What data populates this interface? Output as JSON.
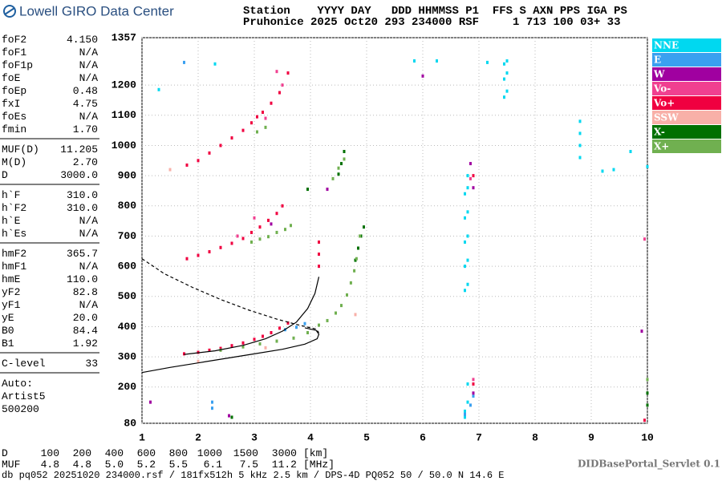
{
  "header": {
    "logo": "Lowell GIRO Data Center",
    "row1": "Station    YYYY DAY   DDD HHMMSS P1  FFS S AXN PPS IGA PS",
    "row2": "Pruhonice 2025 Oct20 293 234000 RSF     1 713 100 03+ 33"
  },
  "params": [
    [
      [
        "foF2",
        "4.150"
      ],
      [
        "foF1",
        "N/A"
      ],
      [
        "foF1p",
        "N/A"
      ],
      [
        "foE",
        "N/A"
      ],
      [
        "foEp",
        "0.48"
      ],
      [
        "fxI",
        "4.75"
      ],
      [
        "foEs",
        "N/A"
      ],
      [
        "fmin",
        "1.70"
      ]
    ],
    [
      [
        "MUF(D)",
        "11.205"
      ],
      [
        "M(D)",
        "2.70"
      ],
      [
        "D",
        "3000.0"
      ]
    ],
    [
      [
        "h`F",
        "310.0"
      ],
      [
        "h`F2",
        "310.0"
      ],
      [
        "h`E",
        "N/A"
      ],
      [
        "h`Es",
        "N/A"
      ]
    ],
    [
      [
        "hmF2",
        "365.7"
      ],
      [
        "hmF1",
        "N/A"
      ],
      [
        "hmE",
        "110.0"
      ],
      [
        "yF2",
        "82.8"
      ],
      [
        "yF1",
        "N/A"
      ],
      [
        "yE",
        "20.0"
      ],
      [
        "B0",
        "84.4"
      ],
      [
        "B1",
        "1.92"
      ]
    ],
    [
      [
        "C-level",
        "33"
      ]
    ]
  ],
  "auto": [
    "Auto:",
    "Artist5",
    "500200"
  ],
  "table": {
    "rows": [
      [
        "D",
        "100",
        "200",
        "400",
        "600",
        "800",
        "1000",
        "1500",
        "3000",
        "[km]"
      ],
      [
        "MUF",
        "4.8",
        "4.8",
        "5.0",
        "5.2",
        "5.5",
        "6.1",
        "7.5",
        "11.2",
        "[MHz]"
      ]
    ]
  },
  "footer": {
    "info": "db pq052 20251020 234000.rsf / 181fx512h 5 kHz 2.5 km / DPS-4D PQ052 50 / 50.0 N 14.6 E",
    "servlet": "DIDBasePortal_Servlet 0.1"
  },
  "chart_data": {
    "type": "scatter",
    "xlim": [
      1,
      10
    ],
    "ylim": [
      80,
      1357
    ],
    "xticks": [
      1,
      2,
      3,
      4,
      5,
      6,
      7,
      8,
      9,
      10
    ],
    "yticks": [
      80,
      200,
      300,
      400,
      500,
      600,
      700,
      800,
      900,
      1000,
      1100,
      1200,
      1357
    ],
    "grid": true,
    "series": [
      {
        "name": "NNE",
        "color": "#00d8f0",
        "x": [
          6.75,
          6.75,
          6.75,
          6.75,
          6.75,
          6.8,
          6.8,
          6.8,
          6.8,
          6.8,
          6.8,
          6.75,
          6.75,
          7.45,
          7.45,
          7.45,
          7.5,
          7.5,
          7.5,
          8.8,
          8.8,
          8.8,
          8.8,
          9.2,
          9.4,
          9.7,
          10,
          6.8,
          6.8,
          5.85,
          6.25,
          7.15,
          2.3,
          1.3
        ],
        "y": [
          520,
          600,
          680,
          760,
          840,
          540,
          620,
          700,
          780,
          860,
          900,
          120,
          100,
          1160,
          1220,
          1270,
          1180,
          1240,
          1280,
          960,
          1000,
          1040,
          1080,
          915,
          920,
          980,
          930,
          150,
          210,
          1280,
          1280,
          1275,
          1270,
          1185
        ]
      },
      {
        "name": "E",
        "color": "#3aa0f0",
        "x": [
          3.55,
          3.75,
          3.9,
          2.25,
          2.25,
          6.75,
          6.85,
          6.9,
          1.75
        ],
        "y": [
          390,
          398,
          410,
          130,
          150,
          110,
          140,
          170,
          1275
        ]
      },
      {
        "name": "W",
        "color": "#a000a0",
        "x": [
          6.9,
          6.9,
          6.85,
          6.0,
          4.3,
          3.3,
          2.55,
          1.15,
          9.9
        ],
        "y": [
          180,
          860,
          940,
          1230,
          855,
          740,
          105,
          150,
          385
        ]
      },
      {
        "name": "Vo-",
        "color": "#f04090",
        "x": [
          2.7,
          3.0,
          3.2,
          3.5,
          6.9,
          6.85,
          9.95,
          3.4
        ],
        "y": [
          700,
          760,
          1090,
          1200,
          225,
          890,
          690,
          1245
        ]
      },
      {
        "name": "Vo+",
        "color": "#f00040",
        "x": [
          1.75,
          2.0,
          2.2,
          2.4,
          2.6,
          2.8,
          3.0,
          3.15,
          3.3,
          3.45,
          3.6,
          1.8,
          2.0,
          2.2,
          2.4,
          2.6,
          2.8,
          2.95,
          3.1,
          3.25,
          3.4,
          3.5,
          1.8,
          2.0,
          2.2,
          2.4,
          2.6,
          2.8,
          2.95,
          3.05,
          3.15,
          3.3,
          3.45,
          3.6,
          4.15,
          4.15,
          4.15,
          6.9,
          6.9,
          9.95
        ],
        "y": [
          310,
          315,
          322,
          328,
          337,
          346,
          358,
          368,
          380,
          395,
          412,
          625,
          636,
          648,
          662,
          676,
          692,
          712,
          730,
          752,
          775,
          800,
          935,
          950,
          975,
          1000,
          1025,
          1050,
          1075,
          1095,
          1110,
          1140,
          1175,
          1240,
          600,
          640,
          680,
          210,
          900,
          90
        ]
      },
      {
        "name": "SSW",
        "color": "#f8b0a8",
        "x": [
          1.5,
          2.0,
          3.2,
          4.8
        ],
        "y": [
          920,
          285,
          330,
          440
        ]
      },
      {
        "name": "X-",
        "color": "#007000",
        "x": [
          4.8,
          4.85,
          4.9,
          4.95,
          4.55,
          4.6,
          4.5,
          3.95,
          10,
          10,
          2.6
        ],
        "y": [
          620,
          660,
          700,
          730,
          940,
          980,
          905,
          855,
          180,
          140,
          100
        ]
      },
      {
        "name": "X+",
        "color": "#70b050",
        "x": [
          2.4,
          2.8,
          3.1,
          3.4,
          3.7,
          3.95,
          4.15,
          4.3,
          4.45,
          4.55,
          4.65,
          4.72,
          4.78,
          4.82,
          4.88,
          2.95,
          3.1,
          3.25,
          3.4,
          3.55,
          3.65,
          3.05,
          3.2,
          4.4,
          4.5,
          4.6,
          10
        ],
        "y": [
          322,
          333,
          343,
          352,
          362,
          380,
          405,
          420,
          445,
          470,
          505,
          545,
          585,
          625,
          700,
          680,
          690,
          698,
          712,
          722,
          735,
          1045,
          1060,
          890,
          925,
          955,
          225
        ]
      }
    ],
    "lines": [
      {
        "color": "#000000",
        "dash": false,
        "x": [
          1.75,
          2.3,
          2.8,
          3.2,
          3.5,
          3.75,
          3.95,
          4.08,
          4.15
        ],
        "y": [
          308,
          320,
          338,
          360,
          385,
          415,
          460,
          510,
          565
        ]
      },
      {
        "color": "#000000",
        "dash": false,
        "x": [
          1.0,
          1.5,
          2.0,
          2.5,
          3.0,
          3.5,
          3.9,
          4.12,
          4.15,
          4.1,
          3.9
        ],
        "y": [
          248,
          265,
          280,
          295,
          310,
          325,
          342,
          360,
          375,
          388,
          396
        ]
      },
      {
        "color": "#000000",
        "dash": true,
        "x": [
          1.0,
          1.4,
          1.9,
          2.4,
          2.9,
          3.4,
          3.8,
          4.1,
          4.15
        ],
        "y": [
          625,
          575,
          530,
          490,
          455,
          425,
          405,
          392,
          380
        ]
      }
    ]
  }
}
